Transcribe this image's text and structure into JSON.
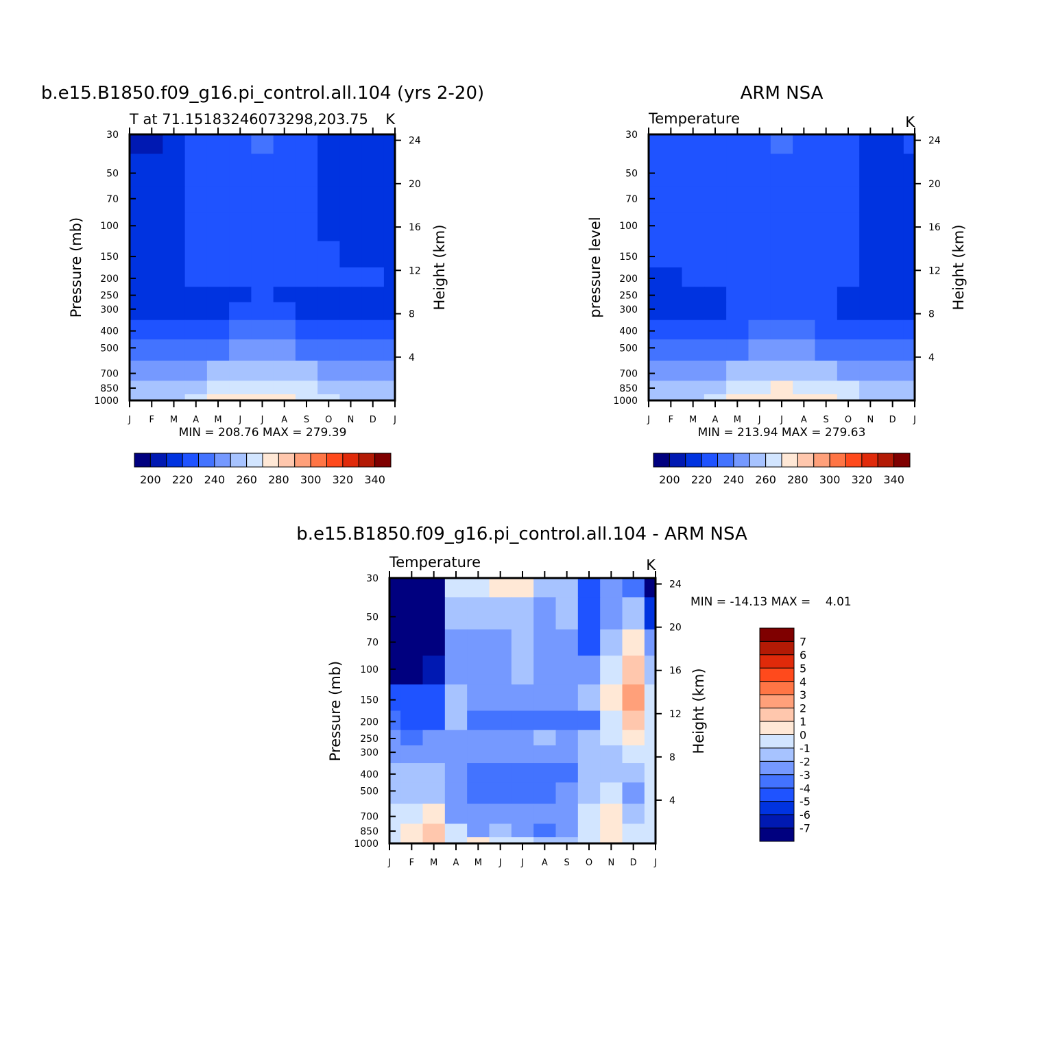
{
  "figure": {
    "panels": [
      {
        "id": "model",
        "title": "b.e15.B1850.f09_g16.pi_control.all.104 (yrs 2-20)",
        "subtitle_left": "T at 71.15183246073298,203.75",
        "subtitle_right": "K",
        "ylabel_left": "Pressure (mb)",
        "ylabel_right": "Height (km)",
        "minmax_text": "MIN = 208.76 MAX = 279.39",
        "colorbar_labels": [
          "200",
          "220",
          "240",
          "260",
          "280",
          "300",
          "320",
          "340"
        ]
      },
      {
        "id": "obs",
        "title": "ARM NSA",
        "subtitle_left": "Temperature",
        "subtitle_right": "K",
        "ylabel_left": "pressure level",
        "ylabel_right": "Height (km)",
        "minmax_text": "MIN = 213.94 MAX = 279.63",
        "colorbar_labels": [
          "200",
          "220",
          "240",
          "260",
          "280",
          "300",
          "320",
          "340"
        ]
      },
      {
        "id": "diff",
        "title": "b.e15.B1850.f09_g16.pi_control.all.104 - ARM NSA",
        "subtitle_left": "Temperature",
        "subtitle_right": "K",
        "ylabel_left": "Pressure (mb)",
        "ylabel_right": "Height (km)",
        "minmax_text": "MIN = -14.13 MAX =    4.01",
        "colorbar_labels": [
          "7",
          "6",
          "5",
          "4",
          "3",
          "2",
          "1",
          "0",
          "-1",
          "-2",
          "-3",
          "-4",
          "-5",
          "-6",
          "-7"
        ]
      }
    ],
    "pressure_ticks": [
      "30",
      "50",
      "70",
      "100",
      "150",
      "200",
      "250",
      "300",
      "400",
      "500",
      "700",
      "850",
      "1000"
    ],
    "height_ticks": [
      "24",
      "20",
      "16",
      "12",
      "8",
      "4"
    ],
    "month_ticks": [
      "J",
      "F",
      "M",
      "A",
      "M",
      "J",
      "J",
      "A",
      "S",
      "O",
      "N",
      "D",
      "J"
    ]
  },
  "chart_data": [
    {
      "type": "heatmap",
      "title": "b.e15.B1850.f09_g16.pi_control.all.104 (yrs 2-20)",
      "subtitle": "T at 71.15183246073298,203.75",
      "units": "K",
      "x": [
        "J",
        "F",
        "M",
        "A",
        "M",
        "J",
        "J",
        "A",
        "S",
        "O",
        "N",
        "D",
        "J"
      ],
      "y": [
        30,
        50,
        70,
        100,
        150,
        200,
        250,
        300,
        400,
        500,
        700,
        850,
        1000
      ],
      "y_scale": "log",
      "ylabel": "Pressure (mb)",
      "ylabel_right": "Height (km)",
      "z": [
        [
          208,
          210,
          215,
          225,
          227,
          229,
          231,
          229,
          226,
          215,
          212,
          212,
          213
        ],
        [
          214,
          214,
          217,
          225,
          226,
          227,
          226,
          226,
          225,
          216,
          214,
          214,
          214
        ],
        [
          216,
          216,
          217,
          224,
          225,
          226,
          226,
          226,
          224,
          217,
          216,
          216,
          216
        ],
        [
          217,
          217,
          218,
          224,
          225,
          226,
          226,
          226,
          224,
          218,
          217,
          217,
          217
        ],
        [
          217,
          217,
          218,
          223,
          225,
          226,
          226,
          226,
          224,
          221,
          219,
          218,
          217
        ],
        [
          218,
          218,
          219,
          221,
          225,
          226,
          226,
          226,
          223,
          221,
          221,
          221,
          218
        ],
        [
          218,
          218,
          218,
          218,
          218,
          219,
          221,
          219,
          218,
          218,
          218,
          218,
          218
        ],
        [
          218,
          218,
          218,
          219,
          220,
          221,
          221,
          221,
          220,
          219,
          218,
          218,
          218
        ],
        [
          226,
          226,
          226,
          227,
          229,
          231,
          231,
          231,
          229,
          227,
          226,
          226,
          226
        ],
        [
          235,
          235,
          235,
          237,
          239,
          241,
          241,
          241,
          239,
          237,
          235,
          235,
          235
        ],
        [
          246,
          246,
          247,
          250,
          253,
          255,
          256,
          255,
          252,
          249,
          247,
          246,
          246
        ],
        [
          253,
          253,
          255,
          259,
          265,
          268,
          269,
          268,
          264,
          259,
          256,
          254,
          253
        ],
        [
          254,
          254,
          257,
          262,
          272,
          277,
          279,
          277,
          269,
          262,
          257,
          255,
          254
        ]
      ],
      "contour_levels": [
        200,
        210,
        220,
        230,
        240,
        250,
        260,
        270,
        280,
        290,
        300,
        310,
        320,
        330,
        340
      ],
      "colorbar_ticks": [
        200,
        220,
        240,
        260,
        280,
        300,
        320,
        340
      ],
      "min": 208.76,
      "max": 279.39
    },
    {
      "type": "heatmap",
      "title": "ARM NSA",
      "subtitle": "Temperature",
      "units": "K",
      "x": [
        "J",
        "F",
        "M",
        "A",
        "M",
        "J",
        "J",
        "A",
        "S",
        "O",
        "N",
        "D",
        "J"
      ],
      "y": [
        30,
        50,
        70,
        100,
        150,
        200,
        250,
        300,
        400,
        500,
        700,
        850,
        1000
      ],
      "y_scale": "log",
      "ylabel": "pressure level",
      "ylabel_right": "Height (km)",
      "z": [
        [
          222,
          223,
          224,
          225,
          226,
          227,
          231,
          226,
          225,
          223,
          218,
          218,
          221
        ],
        [
          222,
          222,
          223,
          224,
          225,
          226,
          226,
          226,
          225,
          223,
          218,
          218,
          219
        ],
        [
          222,
          222,
          223,
          224,
          225,
          226,
          226,
          226,
          225,
          222,
          218,
          218,
          218
        ],
        [
          222,
          222,
          223,
          224,
          225,
          226,
          226,
          226,
          225,
          221,
          218,
          218,
          218
        ],
        [
          221,
          222,
          223,
          224,
          225,
          226,
          226,
          226,
          225,
          221,
          218,
          218,
          218
        ],
        [
          218,
          219,
          221,
          223,
          225,
          226,
          226,
          226,
          225,
          221,
          218,
          218,
          218
        ],
        [
          216,
          216,
          217,
          218,
          222,
          224,
          224,
          224,
          222,
          218,
          218,
          218,
          218
        ],
        [
          216,
          216,
          217,
          218,
          221,
          222,
          223,
          222,
          222,
          220,
          219,
          219,
          218
        ],
        [
          224,
          224,
          225,
          227,
          229,
          231,
          231,
          231,
          229,
          227,
          226,
          225,
          224
        ],
        [
          234,
          234,
          235,
          237,
          240,
          242,
          242,
          242,
          240,
          237,
          235,
          235,
          234
        ],
        [
          246,
          246,
          247,
          250,
          254,
          257,
          258,
          256,
          253,
          250,
          248,
          246,
          246
        ],
        [
          252,
          252,
          254,
          260,
          266,
          270,
          271,
          270,
          265,
          261,
          257,
          253,
          252
        ],
        [
          253,
          253,
          255,
          263,
          272,
          277,
          279,
          278,
          272,
          265,
          258,
          254,
          253
        ]
      ],
      "contour_levels": [
        200,
        210,
        220,
        230,
        240,
        250,
        260,
        270,
        280,
        290,
        300,
        310,
        320,
        330,
        340
      ],
      "colorbar_ticks": [
        200,
        220,
        240,
        260,
        280,
        300,
        320,
        340
      ],
      "min": 213.94,
      "max": 279.63
    },
    {
      "type": "heatmap",
      "title": "b.e15.B1850.f09_g16.pi_control.all.104 - ARM NSA",
      "subtitle": "Temperature",
      "units": "K",
      "x": [
        "J",
        "F",
        "M",
        "A",
        "M",
        "J",
        "J",
        "A",
        "S",
        "O",
        "N",
        "D",
        "J"
      ],
      "y": [
        30,
        50,
        70,
        100,
        150,
        200,
        250,
        300,
        400,
        500,
        700,
        850,
        1000
      ],
      "y_scale": "log",
      "ylabel": "Pressure (mb)",
      "ylabel_right": "Height (km)",
      "z": [
        [
          -14,
          -13,
          -9,
          -0.5,
          -0.5,
          0.5,
          0.3,
          -1.5,
          -1.5,
          -4.5,
          -2,
          -3.5,
          -8
        ],
        [
          -13,
          -12,
          -9,
          -1,
          -1.5,
          -1,
          -1,
          -2.5,
          -1.5,
          -4,
          -2,
          -1,
          -5
        ],
        [
          -9,
          -10,
          -8,
          -2.5,
          -2,
          -2,
          -1.5,
          -2.5,
          -2.5,
          -4,
          -1.5,
          0.5,
          -2
        ],
        [
          -7,
          -8,
          -6,
          -2,
          -2.5,
          -2,
          -1.5,
          -2.5,
          -2.5,
          -2,
          -0.5,
          1.5,
          -1
        ],
        [
          -4,
          -4,
          -4,
          -1.5,
          -2.5,
          -2.5,
          -2.5,
          -2.5,
          -2.5,
          -1.5,
          0.5,
          2.5,
          0
        ],
        [
          -3.5,
          -4,
          -4,
          -1.5,
          -3,
          -3.5,
          -3.5,
          -3.5,
          -3.5,
          -3,
          0,
          2,
          0
        ],
        [
          -2.5,
          -3,
          -2.5,
          -2,
          -2.5,
          -2.5,
          -2.5,
          -1.5,
          -2.5,
          -1.5,
          -0.5,
          0.5,
          -0.5
        ],
        [
          -2,
          -2.5,
          -2,
          -2,
          -2.5,
          -2.5,
          -2.5,
          -2.5,
          -2.5,
          -1.5,
          -1,
          -0.5,
          -0.5
        ],
        [
          -1,
          -1.5,
          -1.5,
          -2.5,
          -3.5,
          -3.5,
          -3.5,
          -3.5,
          -3.5,
          -1,
          -1,
          -1.5,
          -0.5
        ],
        [
          -1.5,
          -1,
          -1,
          -2.5,
          -3,
          -3.5,
          -3.5,
          -3,
          -2.5,
          -1,
          -0.5,
          -2.5,
          -0.5
        ],
        [
          -0.5,
          -0.5,
          0.5,
          -2.5,
          -2.5,
          -2.5,
          -2,
          -2.5,
          -2.5,
          -0.5,
          0.5,
          -1,
          -0.5
        ],
        [
          -0.5,
          0.5,
          1.5,
          -0.5,
          -2,
          -1.5,
          -2,
          -3.5,
          -2,
          -0.5,
          1,
          -0.5,
          -0.5
        ],
        [
          -0.5,
          0.5,
          1.5,
          -0.5,
          0.5,
          -0.5,
          -0.5,
          -1,
          -1,
          -0.5,
          0.5,
          -0.5,
          -0.5
        ]
      ],
      "contour_levels": [
        -7,
        -6,
        -5,
        -4,
        -3,
        -2,
        -1,
        0,
        1,
        2,
        3,
        4,
        5,
        6,
        7
      ],
      "colorbar_ticks": [
        7,
        6,
        5,
        4,
        3,
        2,
        1,
        0,
        -1,
        -2,
        -3,
        -4,
        -5,
        -6,
        -7
      ],
      "min": -14.13,
      "max": 4.01
    }
  ],
  "palette": [
    "#00007f",
    "#0019b2",
    "#0033e0",
    "#1f53ff",
    "#4373ff",
    "#7599ff",
    "#a7c3ff",
    "#d2e5ff",
    "#ffe8d6",
    "#ffc7ad",
    "#ffa07a",
    "#ff7545",
    "#ff4a1c",
    "#e02a0a",
    "#b31a05",
    "#7f0000"
  ]
}
